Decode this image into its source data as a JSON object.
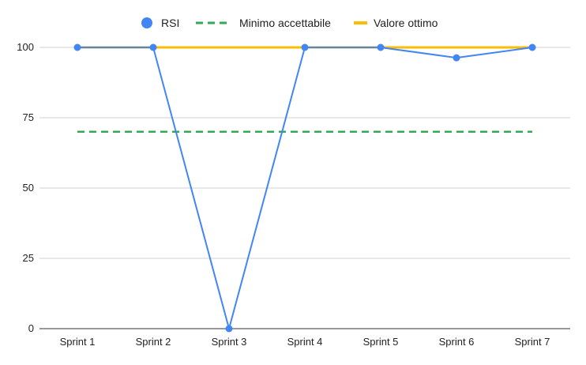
{
  "chart_data": {
    "type": "line",
    "title": "",
    "xlabel": "",
    "ylabel": "",
    "categories": [
      "Sprint 1",
      "Sprint 2",
      "Sprint 3",
      "Sprint 4",
      "Sprint 5",
      "Sprint 6",
      "Sprint 7"
    ],
    "ylim": [
      0,
      100
    ],
    "yticks": [
      "0",
      "25",
      "50",
      "75",
      "100"
    ],
    "grid": true,
    "legend_position": "top",
    "series": [
      {
        "name": "RSI",
        "values": [
          100,
          100,
          0,
          100,
          100,
          96.3,
          100
        ],
        "color": "#4285f4",
        "style": "line-with-points"
      },
      {
        "name": "Minimo accettabile",
        "values": [
          70,
          70,
          70,
          70,
          70,
          70,
          70
        ],
        "color": "#34a853",
        "style": "dashed"
      },
      {
        "name": "Valore ottimo",
        "values": [
          100,
          100,
          100,
          100,
          100,
          100,
          100
        ],
        "color": "#fbbc04",
        "style": "solid"
      }
    ]
  }
}
